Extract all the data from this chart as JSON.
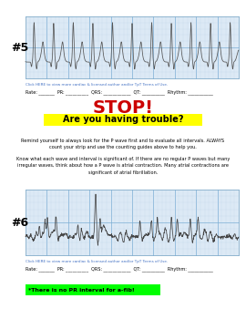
{
  "bg_color": "#ffffff",
  "strip5_label": "#5",
  "strip6_label": "#6",
  "rate_pr_qrs_qt_rhythm_label": "Rate: _______  PR: __________  QRS: ____________  QT: __________  Rhythm: ___________",
  "stop_text": "STOP!",
  "stop_color": "#cc0000",
  "trouble_text": "Are you having trouble?",
  "trouble_bg": "#ffff00",
  "trouble_color": "#000000",
  "body_text1": "Remind yourself to always look for the P wave first and to evaluate all intervals. ALWAYS\ncount your strip and use the counting guides above to help you.",
  "body_text2": "Know what each wave and interval is significant of. If there are no regular P waves but many\nirregular waves, think about how a P wave is atrial contraction. Many atrial contractions are\nsignificant of atrial fibrillation.",
  "note_text": "*There is no PR interval for a-fib!",
  "note_bg": "#00ff00",
  "note_color": "#000000",
  "link_text": "Click HERE to view more cardiac & licensed author and/or TpT Terms of Use.",
  "link_color": "#4472c4",
  "ekg_bg": "#dce9f5",
  "grid_color": "#aec6e8"
}
